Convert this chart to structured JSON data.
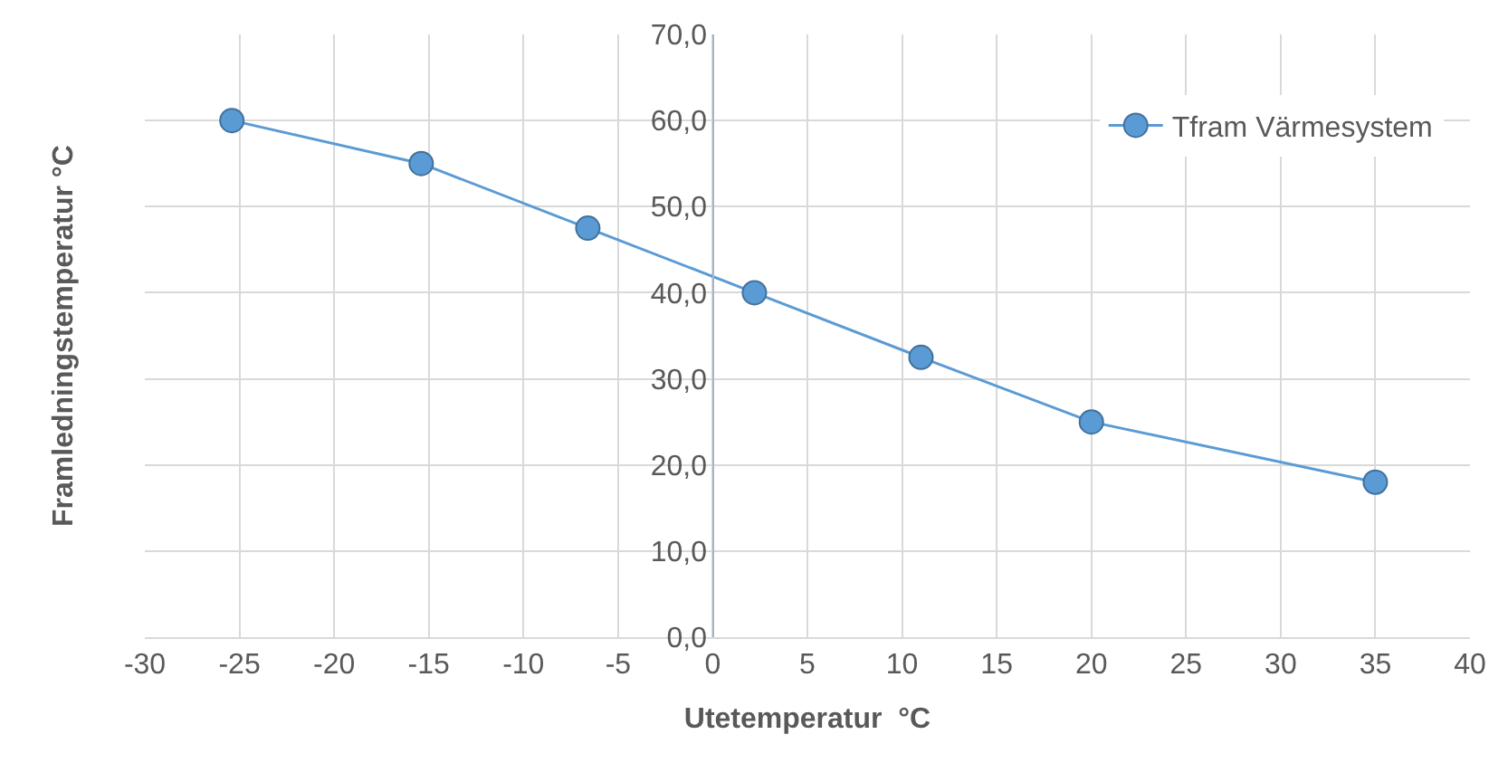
{
  "chart_data": {
    "type": "line",
    "xlabel": "Utetemperatur  °C",
    "ylabel": "Framledningstemperatur °C",
    "x": [
      -25.4,
      -15.4,
      -6.6,
      2.2,
      11.0,
      20.0,
      35.0
    ],
    "series": [
      {
        "name": "Tfram Värmesystem",
        "color": "#5b9bd5",
        "values": [
          60,
          55,
          47.5,
          40,
          32.5,
          25,
          18
        ]
      }
    ],
    "xlim": [
      -30,
      40
    ],
    "xticks": [
      -30,
      -25,
      -20,
      -15,
      -10,
      -5,
      0,
      5,
      10,
      15,
      20,
      25,
      30,
      35,
      40
    ],
    "ylim": [
      0,
      70
    ],
    "yticks": [
      {
        "value": 0,
        "label": "0,0"
      },
      {
        "value": 10,
        "label": "10,0"
      },
      {
        "value": 20,
        "label": "20,0"
      },
      {
        "value": 30,
        "label": "30,0"
      },
      {
        "value": 40,
        "label": "40,0"
      },
      {
        "value": 50,
        "label": "50,0"
      },
      {
        "value": 60,
        "label": "60,0"
      },
      {
        "value": 70,
        "label": "70,0"
      }
    ],
    "grid": true,
    "legend": "top right",
    "marker": "circle",
    "line_style": "solid"
  }
}
